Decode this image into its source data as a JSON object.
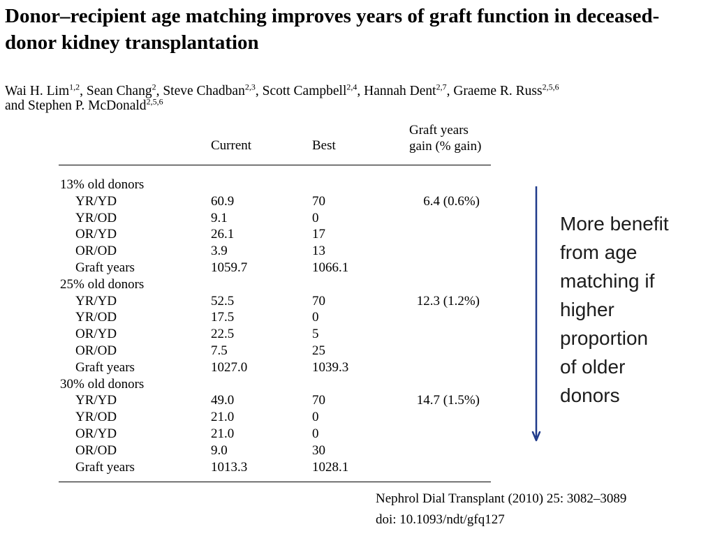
{
  "title": "Donor–recipient age matching improves years of graft function in deceased-donor kidney transplantation",
  "authors": [
    {
      "name": "Wai H. Lim",
      "aff": "1,2",
      "sep": ", "
    },
    {
      "name": "Sean Chang",
      "aff": "2",
      "sep": ", "
    },
    {
      "name": "Steve Chadban",
      "aff": "2,3",
      "sep": ", "
    },
    {
      "name": "Scott Campbell",
      "aff": "2,4",
      "sep": ", "
    },
    {
      "name": "Hannah Dent",
      "aff": "2,7",
      "sep": ", "
    },
    {
      "name": "Graeme R. Russ",
      "aff": "2,5,6",
      "sep": " and "
    },
    {
      "name": "Stephen P. McDonald",
      "aff": "2,5,6",
      "sep": ""
    }
  ],
  "table": {
    "headers": {
      "current": "Current",
      "best": "Best",
      "gain_line1": "Graft years",
      "gain_line2": "gain (% gain)"
    },
    "rows": [
      {
        "label": "13% old donors",
        "current": "",
        "best": "",
        "gain": "",
        "group": true
      },
      {
        "label": "YR/YD",
        "current": "60.9",
        "best": "70",
        "gain": "6.4 (0.6%)"
      },
      {
        "label": "YR/OD",
        "current": "9.1",
        "best": "0",
        "gain": ""
      },
      {
        "label": "OR/YD",
        "current": "26.1",
        "best": "17",
        "gain": ""
      },
      {
        "label": "OR/OD",
        "current": "3.9",
        "best": "13",
        "gain": ""
      },
      {
        "label": "Graft years",
        "current": "1059.7",
        "best": "1066.1",
        "gain": ""
      },
      {
        "label": "25% old donors",
        "current": "",
        "best": "",
        "gain": "",
        "group": true
      },
      {
        "label": "YR/YD",
        "current": "52.5",
        "best": "70",
        "gain": "12.3 (1.2%)"
      },
      {
        "label": "YR/OD",
        "current": "17.5",
        "best": "0",
        "gain": ""
      },
      {
        "label": "OR/YD",
        "current": "22.5",
        "best": "5",
        "gain": ""
      },
      {
        "label": "OR/OD",
        "current": "7.5",
        "best": "25",
        "gain": ""
      },
      {
        "label": "Graft years",
        "current": "1027.0",
        "best": "1039.3",
        "gain": ""
      },
      {
        "label": "30% old donors",
        "current": "",
        "best": "",
        "gain": "",
        "group": true
      },
      {
        "label": "YR/YD",
        "current": "49.0",
        "best": "70",
        "gain": "14.7 (1.5%)"
      },
      {
        "label": "YR/OD",
        "current": "21.0",
        "best": "0",
        "gain": ""
      },
      {
        "label": "OR/YD",
        "current": "21.0",
        "best": "0",
        "gain": ""
      },
      {
        "label": "OR/OD",
        "current": "9.0",
        "best": "30",
        "gain": ""
      },
      {
        "label": "Graft years",
        "current": "1013.3",
        "best": "1028.1",
        "gain": ""
      }
    ]
  },
  "side_note": {
    "lines": [
      "More benefit",
      "from age",
      "matching if",
      "higher",
      "proportion",
      "of older",
      "donors"
    ],
    "arrow_color": "#1f3a8a"
  },
  "citation": {
    "line1": "Nephrol Dial Transplant (2010) 25: 3082–3089",
    "line2": "doi: 10.1093/ndt/gfq127"
  }
}
